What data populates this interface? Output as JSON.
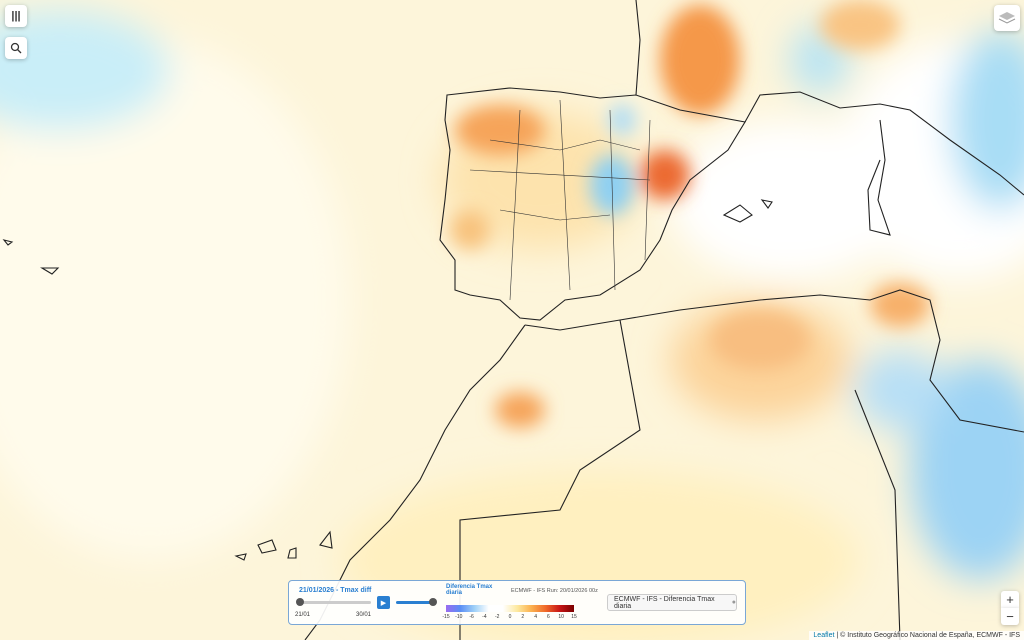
{
  "controls": {
    "date_title": "21/01/2026 - Tmax diff",
    "slider_start": "21/01",
    "slider_end": "30/01"
  },
  "legend": {
    "title": "Diferencia Tmax diaria",
    "run": "ECMWF - IFS Run: 20/01/2026 00z",
    "ticks": [
      -15,
      -10,
      -6,
      -4,
      -2,
      0,
      2,
      4,
      6,
      10,
      15
    ]
  },
  "layer_button": "ECMWF - IFS - Diferencia Tmax diaria",
  "zoom": {
    "in": "+",
    "out": "−"
  },
  "attribution": {
    "leaflet": "Leaflet",
    "text": "| © Instituto Geográfico Nacional de España, ECMWF - IFS"
  }
}
